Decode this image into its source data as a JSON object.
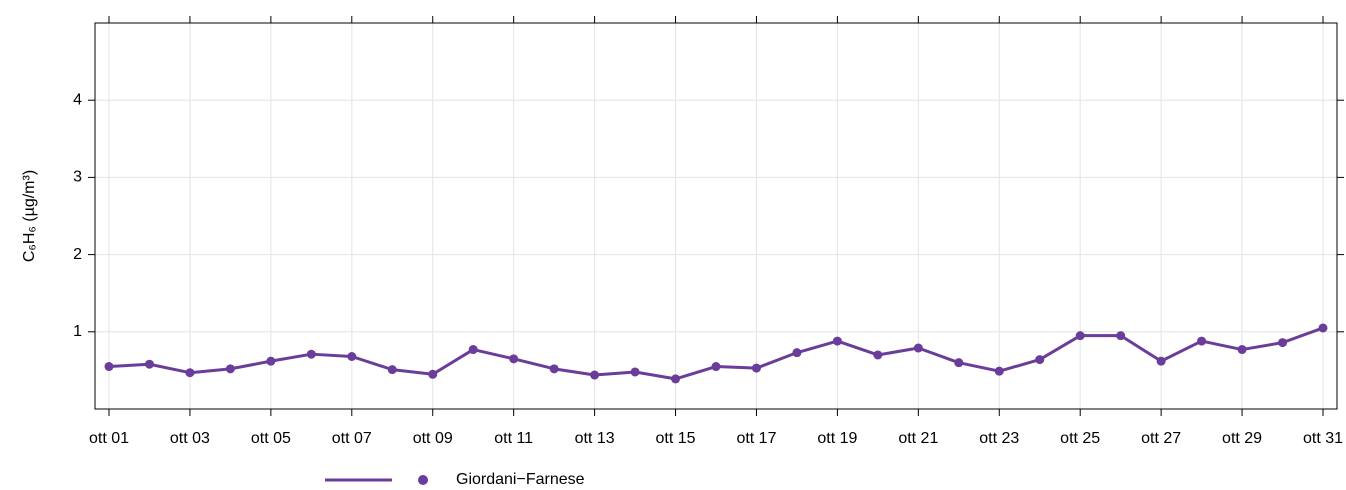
{
  "chart_data": {
    "type": "line",
    "y_label": "C₆H₆ (µg/m³)",
    "categories": [
      "ott 01",
      null,
      "ott 03",
      null,
      "ott 05",
      null,
      "ott 07",
      null,
      "ott 09",
      null,
      "ott 11",
      null,
      "ott 13",
      null,
      "ott 15",
      null,
      "ott 17",
      null,
      "ott 19",
      null,
      "ott 21",
      null,
      "ott 23",
      null,
      "ott 25",
      null,
      "ott 27",
      null,
      "ott 29",
      null,
      "ott 31"
    ],
    "series": [
      {
        "name": "Giordani−Farnese",
        "color": "#6a3d9a",
        "values": [
          0.55,
          0.58,
          0.47,
          0.52,
          0.62,
          0.71,
          0.68,
          0.51,
          0.45,
          0.77,
          0.65,
          0.52,
          0.44,
          0.48,
          0.39,
          0.55,
          0.53,
          0.73,
          0.88,
          0.7,
          0.79,
          0.6,
          0.49,
          0.64,
          0.95,
          0.95,
          0.62,
          0.88,
          0.77,
          0.86,
          1.05
        ]
      }
    ],
    "ylim": [
      0,
      5
    ],
    "yticks": [
      1,
      2,
      3,
      4
    ],
    "grid": true,
    "legend": "bottom"
  }
}
